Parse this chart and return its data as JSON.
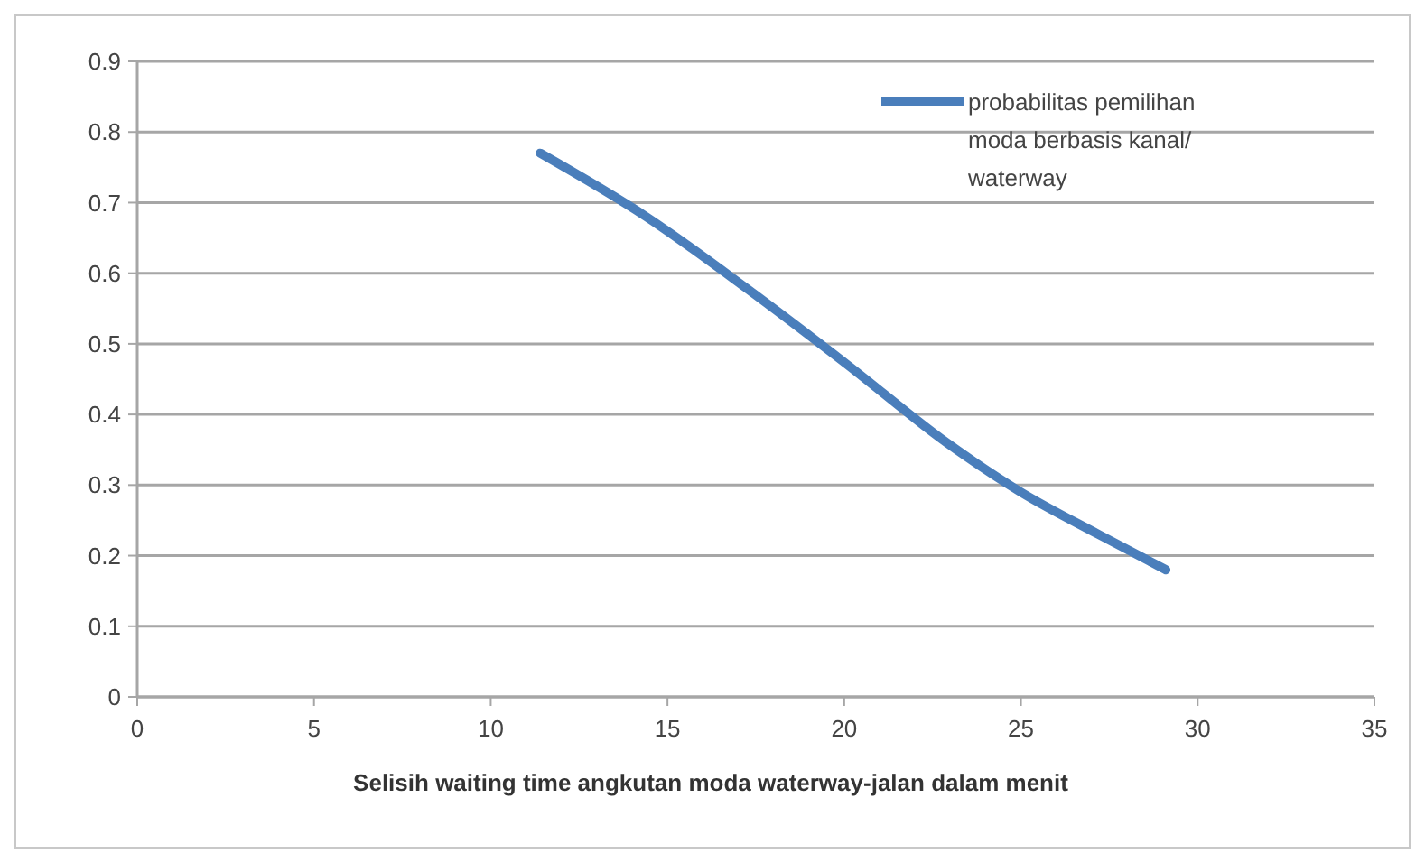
{
  "chart_data": {
    "type": "line",
    "xlabel": "Selisih waiting time angkutan moda waterway-jalan dalam menit",
    "series": [
      {
        "name": "probabilitas pemilihan moda berbasis kanal/ waterway",
        "color": "#4a7ebb",
        "x": [
          11.4,
          14.4,
          17.2,
          20.1,
          22.9,
          25,
          27.2,
          29.1
        ],
        "values": [
          0.77,
          0.68,
          0.58,
          0.47,
          0.36,
          0.29,
          0.23,
          0.18
        ]
      }
    ],
    "xlim": [
      0,
      35
    ],
    "xticks": [
      0,
      5,
      10,
      15,
      20,
      25,
      30,
      35
    ],
    "ylim": [
      0,
      0.9
    ],
    "yticks": [
      0,
      0.1,
      0.2,
      0.3,
      0.4,
      0.5,
      0.6,
      0.7,
      0.8,
      0.9
    ],
    "grid": "y",
    "legend": "top right",
    "marker": "none",
    "line_style": "solid"
  }
}
